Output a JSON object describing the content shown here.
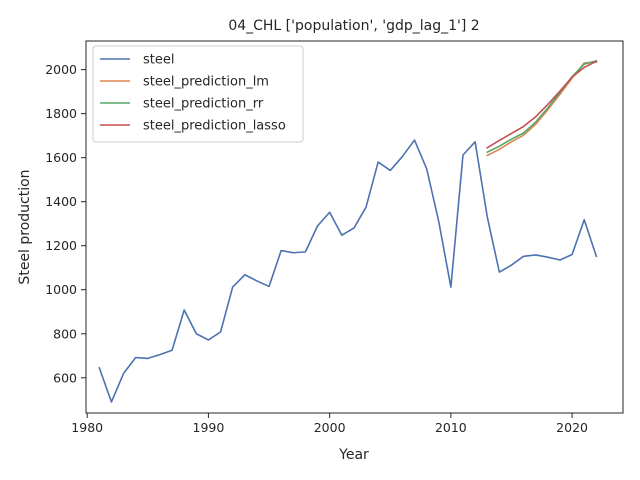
{
  "chart_data": {
    "type": "line",
    "title": "04_CHL ['population', 'gdp_lag_1'] 2",
    "xlabel": "Year",
    "ylabel": "Steel production",
    "xlim": [
      1979.9,
      2024.2
    ],
    "ylim": [
      440,
      2130
    ],
    "xticks": [
      1980,
      1990,
      2000,
      2010,
      2020
    ],
    "yticks": [
      600,
      800,
      1000,
      1200,
      1400,
      1600,
      1800,
      2000
    ],
    "grid": false,
    "legend_position": "top-left",
    "series": [
      {
        "name": "steel",
        "color": "#4c72b0",
        "x": [
          1981,
          1982,
          1983,
          1984,
          1985,
          1986,
          1987,
          1988,
          1989,
          1990,
          1991,
          1992,
          1993,
          1994,
          1995,
          1996,
          1997,
          1998,
          1999,
          2000,
          2001,
          2002,
          2003,
          2004,
          2005,
          2006,
          2007,
          2008,
          2009,
          2010,
          2011,
          2012,
          2013,
          2014,
          2015,
          2016,
          2017,
          2018,
          2019,
          2020,
          2021,
          2022
        ],
        "y": [
          645,
          490,
          620,
          692,
          688,
          705,
          725,
          908,
          800,
          772,
          808,
          1012,
          1068,
          1040,
          1015,
          1178,
          1168,
          1172,
          1290,
          1352,
          1248,
          1280,
          1375,
          1580,
          1542,
          1605,
          1680,
          1550,
          1310,
          1012,
          1612,
          1672,
          1332,
          1080,
          1112,
          1152,
          1158,
          1148,
          1135,
          1160,
          1318,
          1152
        ]
      },
      {
        "name": "steel_prediction_lm",
        "color": "#dd8452",
        "x": [
          2013,
          2014,
          2015,
          2016,
          2017,
          2018,
          2019,
          2020,
          2021,
          2022
        ],
        "y": [
          1610,
          1638,
          1672,
          1702,
          1752,
          1818,
          1888,
          1962,
          2030,
          2035
        ]
      },
      {
        "name": "steel_prediction_rr",
        "color": "#55a868",
        "x": [
          2013,
          2014,
          2015,
          2016,
          2017,
          2018,
          2019,
          2020,
          2021,
          2022
        ],
        "y": [
          1625,
          1652,
          1684,
          1712,
          1762,
          1826,
          1896,
          1968,
          2025,
          2040
        ]
      },
      {
        "name": "steel_prediction_lasso",
        "color": "#c44e52",
        "x": [
          2013,
          2014,
          2015,
          2016,
          2017,
          2018,
          2019,
          2020,
          2021,
          2022
        ],
        "y": [
          1645,
          1678,
          1710,
          1742,
          1786,
          1842,
          1902,
          1966,
          2010,
          2038
        ]
      }
    ]
  }
}
